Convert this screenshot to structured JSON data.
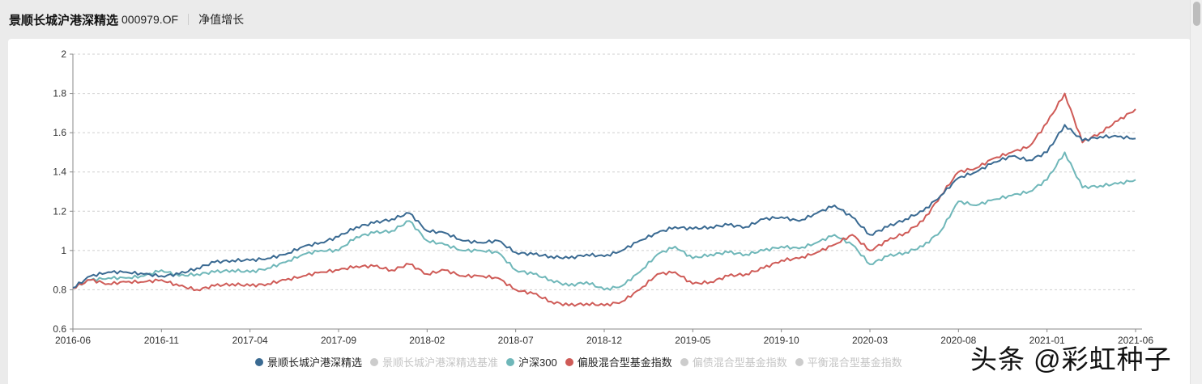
{
  "header": {
    "fund_name": "景顺长城沪港深精选",
    "fund_code": "000979.OF",
    "tab_label": "净值增长"
  },
  "legend": [
    {
      "label": "景顺长城沪港深精选",
      "color": "#3a6a92",
      "active": true
    },
    {
      "label": "景顺长城沪港深精选基准",
      "color": "#cccccc",
      "active": false
    },
    {
      "label": "沪深300",
      "color": "#6fb7b9",
      "active": true
    },
    {
      "label": "偏股混合型基金指数",
      "color": "#cf5b57",
      "active": true
    },
    {
      "label": "偏债混合型基金指数",
      "color": "#cccccc",
      "active": false
    },
    {
      "label": "平衡混合型基金指数",
      "color": "#cccccc",
      "active": false
    }
  ],
  "watermark": "头条 @彩虹种子",
  "chart_data": {
    "type": "line",
    "title": "净值增长",
    "xlabel": "",
    "ylabel": "",
    "ylim": [
      0.6,
      2.0
    ],
    "yticks": [
      0.6,
      0.8,
      1,
      1.2,
      1.4,
      1.6,
      1.8,
      2
    ],
    "xticks": [
      "2016-06",
      "2016-11",
      "2017-04",
      "2017-09",
      "2018-02",
      "2018-07",
      "2018-12",
      "2019-05",
      "2019-10",
      "2020-03",
      "2020-08",
      "2021-01",
      "2021-06"
    ],
    "grid": "horizontal-dashed",
    "legend_position": "bottom",
    "x": [
      "2016-06",
      "2016-07",
      "2016-08",
      "2016-09",
      "2016-10",
      "2016-11",
      "2016-12",
      "2017-01",
      "2017-02",
      "2017-03",
      "2017-04",
      "2017-05",
      "2017-06",
      "2017-07",
      "2017-08",
      "2017-09",
      "2017-10",
      "2017-11",
      "2017-12",
      "2018-01",
      "2018-02",
      "2018-03",
      "2018-04",
      "2018-05",
      "2018-06",
      "2018-07",
      "2018-08",
      "2018-09",
      "2018-10",
      "2018-11",
      "2018-12",
      "2019-01",
      "2019-02",
      "2019-03",
      "2019-04",
      "2019-05",
      "2019-06",
      "2019-07",
      "2019-08",
      "2019-09",
      "2019-10",
      "2019-11",
      "2019-12",
      "2020-01",
      "2020-02",
      "2020-03",
      "2020-04",
      "2020-05",
      "2020-06",
      "2020-07",
      "2020-08",
      "2020-09",
      "2020-10",
      "2020-11",
      "2020-12",
      "2021-01",
      "2021-02",
      "2021-03",
      "2021-04",
      "2021-05",
      "2021-06"
    ],
    "series": [
      {
        "name": "景顺长城沪港深精选",
        "color": "#3a6a92",
        "values": [
          0.81,
          0.87,
          0.89,
          0.89,
          0.88,
          0.87,
          0.88,
          0.91,
          0.94,
          0.95,
          0.95,
          0.96,
          0.98,
          1.02,
          1.04,
          1.07,
          1.12,
          1.14,
          1.16,
          1.19,
          1.1,
          1.09,
          1.05,
          1.04,
          1.05,
          0.99,
          0.98,
          0.97,
          0.96,
          0.98,
          0.97,
          1.0,
          1.05,
          1.09,
          1.12,
          1.11,
          1.12,
          1.13,
          1.12,
          1.16,
          1.17,
          1.15,
          1.19,
          1.23,
          1.17,
          1.08,
          1.12,
          1.16,
          1.2,
          1.28,
          1.37,
          1.4,
          1.45,
          1.48,
          1.46,
          1.5,
          1.64,
          1.56,
          1.58,
          1.58,
          1.57
        ]
      },
      {
        "name": "沪深300",
        "color": "#6fb7b9",
        "values": [
          0.81,
          0.85,
          0.86,
          0.86,
          0.87,
          0.9,
          0.87,
          0.88,
          0.89,
          0.9,
          0.89,
          0.91,
          0.94,
          0.98,
          1.0,
          1.0,
          1.07,
          1.09,
          1.1,
          1.15,
          1.05,
          1.03,
          1.0,
          1.0,
          0.99,
          0.9,
          0.88,
          0.85,
          0.82,
          0.84,
          0.8,
          0.82,
          0.89,
          0.98,
          1.02,
          0.96,
          0.98,
          0.99,
          0.98,
          1.0,
          1.02,
          1.01,
          1.04,
          1.08,
          1.03,
          0.93,
          0.97,
          0.99,
          1.02,
          1.1,
          1.25,
          1.23,
          1.26,
          1.28,
          1.3,
          1.36,
          1.5,
          1.32,
          1.33,
          1.34,
          1.36
        ]
      },
      {
        "name": "偏股混合型基金指数",
        "color": "#cf5b57",
        "values": [
          0.81,
          0.85,
          0.83,
          0.84,
          0.84,
          0.85,
          0.82,
          0.8,
          0.82,
          0.83,
          0.82,
          0.83,
          0.85,
          0.87,
          0.89,
          0.9,
          0.92,
          0.92,
          0.9,
          0.93,
          0.88,
          0.9,
          0.87,
          0.87,
          0.86,
          0.8,
          0.78,
          0.74,
          0.72,
          0.73,
          0.72,
          0.74,
          0.8,
          0.88,
          0.89,
          0.83,
          0.84,
          0.87,
          0.88,
          0.91,
          0.95,
          0.96,
          0.99,
          1.03,
          1.08,
          1.0,
          1.05,
          1.09,
          1.15,
          1.28,
          1.4,
          1.42,
          1.47,
          1.5,
          1.53,
          1.65,
          1.8,
          1.55,
          1.6,
          1.66,
          1.72
        ]
      }
    ]
  }
}
